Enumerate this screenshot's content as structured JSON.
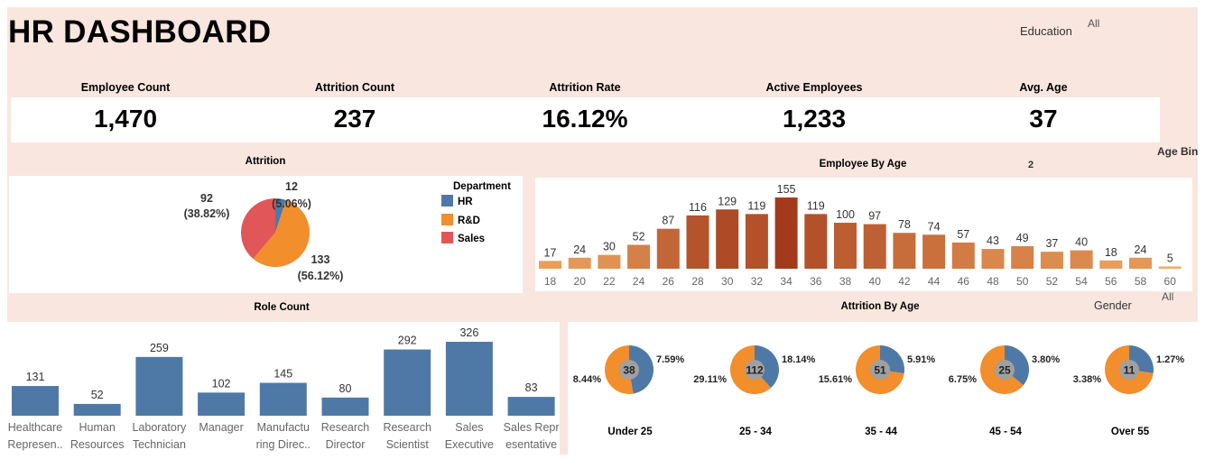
{
  "header": {
    "title": "HR DASHBOARD"
  },
  "filters": {
    "education": {
      "label": "Education",
      "value": "All"
    },
    "age_bin": {
      "label": "Age Bin",
      "value": "2"
    },
    "gender": {
      "label": "Gender",
      "value": "All"
    }
  },
  "kpis": [
    {
      "label": "Employee Count",
      "value": "1,470"
    },
    {
      "label": "Attrition Count",
      "value": "237"
    },
    {
      "label": "Attrition Rate",
      "value": "16.12%"
    },
    {
      "label": "Active Employees",
      "value": "1,233"
    },
    {
      "label": "Avg. Age",
      "value": "37"
    }
  ],
  "colors": {
    "hr": "#4e79a7",
    "rd": "#f28e2b",
    "sales": "#e15759",
    "role_bar": "#4e79a7",
    "background": "#f9e6df"
  },
  "attrition_panel": {
    "title": "Attrition",
    "legend_title": "Department",
    "chart_data": {
      "type": "pie",
      "slices": [
        {
          "name": "HR",
          "value": 12,
          "percent": "5.06%"
        },
        {
          "name": "R&D",
          "value": 133,
          "percent": "56.12%"
        },
        {
          "name": "Sales",
          "value": 92,
          "percent": "38.82%"
        }
      ]
    }
  },
  "age_panel": {
    "title": "Employee By Age",
    "chart_data": {
      "type": "bar",
      "categories": [
        "18",
        "20",
        "22",
        "24",
        "26",
        "28",
        "30",
        "32",
        "34",
        "36",
        "38",
        "40",
        "42",
        "44",
        "46",
        "48",
        "50",
        "52",
        "54",
        "56",
        "58",
        "60"
      ],
      "values": [
        17,
        24,
        30,
        52,
        87,
        116,
        129,
        119,
        155,
        119,
        100,
        97,
        78,
        74,
        57,
        43,
        49,
        37,
        40,
        18,
        24,
        5
      ],
      "ylim": [
        0,
        155
      ]
    }
  },
  "role_panel": {
    "title": "Role Count",
    "chart_data": {
      "type": "bar",
      "categories": [
        [
          "Healthcare",
          "Represen.."
        ],
        [
          "Human",
          "Resources"
        ],
        [
          "Laboratory",
          "Technician"
        ],
        [
          "Manager",
          ""
        ],
        [
          "Manufactu",
          "ring Direc.."
        ],
        [
          "Research",
          "Director"
        ],
        [
          "Research",
          "Scientist"
        ],
        [
          "Sales",
          "Executive"
        ],
        [
          "Sales Repr",
          "esentative"
        ]
      ],
      "values": [
        131,
        52,
        259,
        102,
        145,
        80,
        292,
        326,
        83
      ],
      "ylim": [
        0,
        326
      ]
    }
  },
  "attrition_age_panel": {
    "title": "Attrition By Age",
    "chart_data": {
      "type": "pie",
      "groups": [
        {
          "name": "Under 25",
          "total": "38",
          "blue_pct": 7.59,
          "orange_pct": 8.44,
          "blue_label": "7.59%",
          "orange_label": "8.44%"
        },
        {
          "name": "25 - 34",
          "total": "112",
          "blue_pct": 18.14,
          "orange_pct": 29.11,
          "blue_label": "18.14%",
          "orange_label": "29.11%"
        },
        {
          "name": "35 - 44",
          "total": "51",
          "blue_pct": 5.91,
          "orange_pct": 15.61,
          "blue_label": "5.91%",
          "orange_label": "15.61%"
        },
        {
          "name": "45 - 54",
          "total": "25",
          "blue_pct": 3.8,
          "orange_pct": 6.75,
          "blue_label": "3.80%",
          "orange_label": "6.75%"
        },
        {
          "name": "Over 55",
          "total": "11",
          "blue_pct": 1.27,
          "orange_pct": 3.38,
          "blue_label": "1.27%",
          "orange_label": "3.38%"
        }
      ]
    }
  }
}
